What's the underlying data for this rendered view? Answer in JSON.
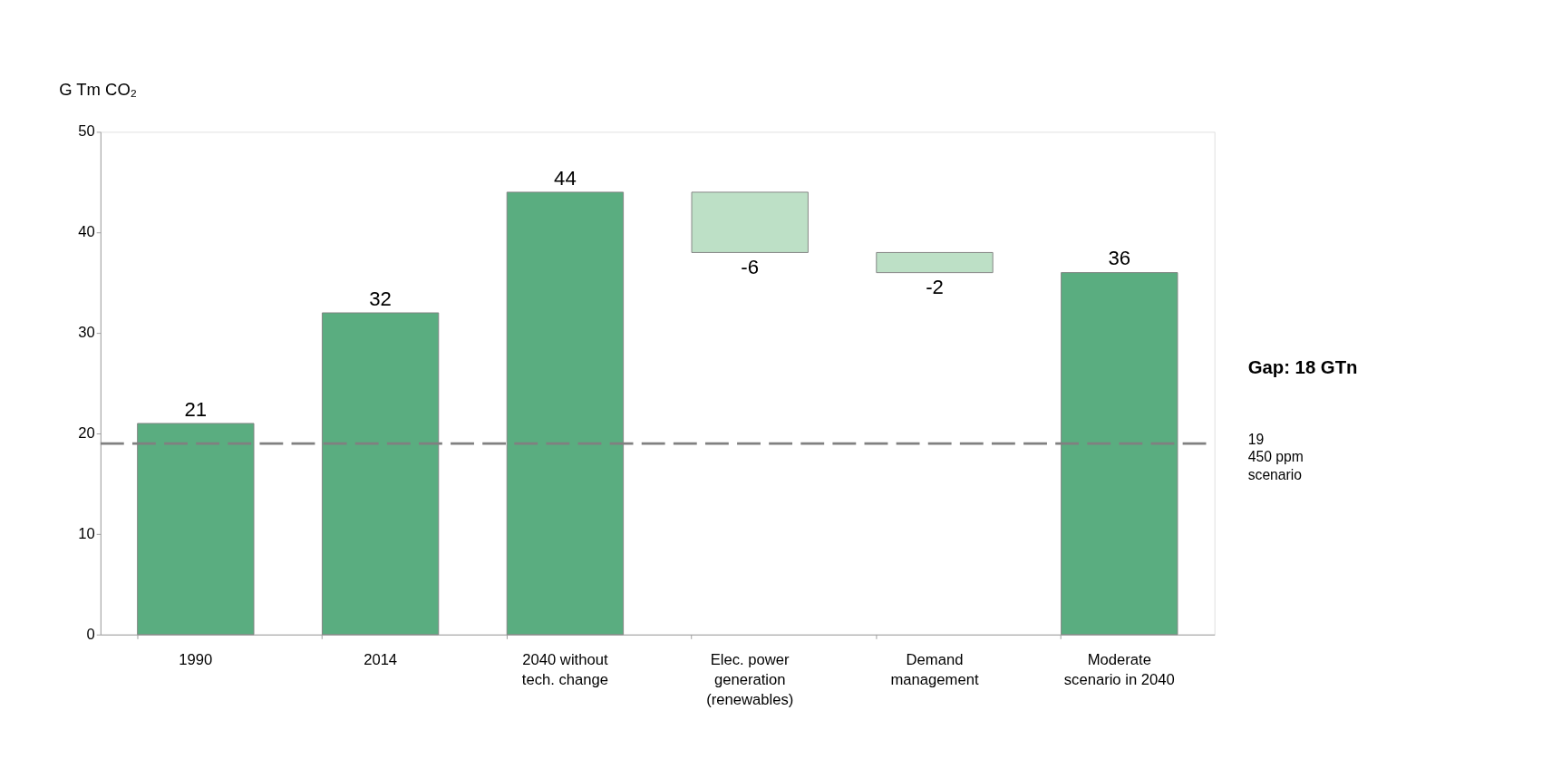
{
  "chart_data": {
    "type": "bar",
    "ylabel": "G Tm CO₂",
    "categories": [
      "1990",
      "2014",
      "2040 without tech. change",
      "Elec. power generation (renewables)",
      "Demand management",
      "Moderate scenario in 2040"
    ],
    "values": [
      21,
      32,
      44,
      -6,
      -2,
      36
    ],
    "base": [
      0,
      0,
      0,
      44,
      38,
      0
    ],
    "colors": [
      "#5aad80",
      "#5aad80",
      "#5aad80",
      "#bde0c6",
      "#bde0c6",
      "#5aad80"
    ],
    "ylim": [
      0,
      50
    ],
    "yticks": [
      0,
      10,
      20,
      30,
      40,
      50
    ],
    "data_labels": true,
    "grid": false,
    "ref_lines": [
      {
        "axis": "y",
        "value": 19,
        "label": "19 450 ppm scenario",
        "color": "#808080",
        "line_style": "dashed"
      }
    ],
    "annotations": [
      "Gap: 18 GTn"
    ]
  }
}
